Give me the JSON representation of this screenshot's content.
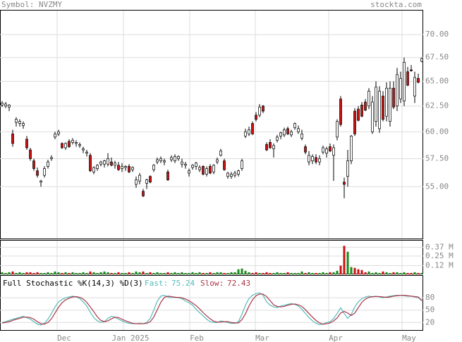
{
  "header": {
    "symbol": "Symbol: NVZMY",
    "site": "stockta.com"
  },
  "chart_data": [
    {
      "type": "candlestick",
      "log": true,
      "ylim": [
        50.6,
        72.8
      ],
      "yticks": [
        {
          "value": 70,
          "label": "70.00"
        },
        {
          "value": 67.5,
          "label": "67.50"
        },
        {
          "value": 65,
          "label": "65.00"
        },
        {
          "value": 62.5,
          "label": "62.50"
        },
        {
          "value": 60,
          "label": "60.00"
        },
        {
          "value": 57.5,
          "label": "57.50"
        },
        {
          "value": 55,
          "label": "55.00"
        }
      ],
      "grid": true,
      "up_color": "#ffffff",
      "down_color": "#cc1111",
      "open": [
        62.6,
        62.5,
        62.4,
        59.8,
        60.9,
        60.8,
        60.6,
        59.3,
        58.3,
        57.3,
        56.4,
        55.4,
        56.0,
        56.8,
        57.5,
        59.5,
        59.8,
        58.9,
        58.5,
        59.1,
        59.0,
        58.9,
        58.7,
        58.3,
        58.0,
        57.8,
        56.3,
        56.6,
        57.0,
        57.0,
        57.0,
        57.2,
        56.9,
        56.9,
        56.6,
        56.7,
        56.8,
        56.5,
        55.2,
        55.5,
        54.6,
        55.3,
        55.9,
        56.5,
        57.2,
        57.3,
        57.2,
        56.3,
        57.4,
        57.3,
        57.5,
        57.0,
        56.9,
        56.2,
        56.7,
        56.8,
        56.5,
        56.8,
        56.1,
        56.8,
        56.3,
        57.2,
        57.8,
        57.3,
        55.9,
        55.9,
        56.0,
        56.1,
        56.6,
        59.6,
        59.8,
        60.8,
        61.6,
        61.6,
        62.5,
        58.8,
        59.0,
        58.4,
        59.2,
        59.6,
        59.7,
        60.3,
        59.7,
        60.4,
        60.0,
        59.4,
        58.6,
        57.2,
        57.3,
        57.6,
        57.2,
        58.1,
        58.0,
        58.6,
        57.8,
        59.5,
        63.2,
        55.4,
        55.9,
        57.3,
        62.0,
        62.2,
        62.6,
        62.9,
        62.5,
        60.0,
        61.0,
        60.3,
        63.5,
        61.5,
        61.0,
        64.3,
        62.5,
        63.2,
        63.0,
        66.0,
        66.2,
        63.5,
        65.3,
        67.1
      ],
      "high": [
        63.0,
        62.9,
        62.7,
        60.2,
        61.4,
        61.2,
        61.0,
        59.6,
        58.5,
        57.5,
        56.7,
        55.6,
        56.8,
        57.4,
        57.8,
        60.0,
        60.2,
        59.0,
        59.0,
        59.3,
        59.4,
        59.2,
        59.0,
        58.6,
        58.3,
        58.0,
        56.8,
        57.0,
        57.3,
        57.4,
        58.0,
        57.6,
        57.3,
        57.2,
        57.1,
        56.9,
        57.0,
        56.8,
        55.9,
        56.2,
        54.8,
        55.7,
        56.0,
        57.0,
        57.6,
        57.7,
        57.5,
        56.5,
        57.8,
        57.9,
        57.8,
        57.5,
        57.2,
        56.6,
        57.0,
        57.2,
        56.9,
        56.9,
        56.8,
        57.0,
        57.0,
        57.6,
        58.4,
        57.5,
        56.3,
        56.3,
        56.4,
        56.5,
        57.5,
        60.3,
        60.5,
        61.0,
        61.9,
        62.7,
        62.6,
        59.0,
        59.3,
        58.9,
        59.7,
        60.0,
        60.4,
        60.5,
        60.2,
        60.9,
        60.6,
        60.2,
        58.8,
        58.2,
        57.9,
        57.9,
        57.8,
        58.7,
        58.6,
        58.9,
        58.8,
        61.2,
        63.5,
        55.8,
        58.3,
        59.7,
        62.3,
        62.5,
        62.9,
        63.2,
        64.3,
        63.5,
        65.0,
        64.5,
        64.0,
        64.9,
        65.0,
        65.0,
        66.4,
        66.0,
        67.5,
        66.5,
        66.7,
        66.0,
        65.8,
        67.5
      ],
      "low": [
        62.4,
        62.3,
        62.0,
        58.6,
        60.5,
        60.5,
        60.3,
        58.3,
        57.3,
        56.4,
        55.8,
        55.0,
        55.8,
        56.6,
        57.3,
        59.3,
        59.6,
        58.4,
        58.3,
        58.5,
        58.8,
        58.6,
        58.5,
        58.0,
        57.7,
        56.3,
        56.1,
        56.4,
        56.8,
        56.7,
        56.8,
        56.8,
        56.6,
        56.4,
        56.3,
        56.4,
        56.2,
        56.3,
        54.9,
        55.2,
        54.1,
        54.8,
        55.3,
        56.3,
        57.0,
        57.1,
        56.9,
        55.5,
        57.2,
        57.1,
        57.3,
        56.7,
        56.6,
        55.9,
        56.5,
        56.5,
        56.3,
        56.0,
        55.9,
        56.1,
        56.1,
        57.0,
        57.7,
        56.4,
        55.7,
        55.7,
        55.8,
        55.9,
        56.4,
        59.4,
        59.6,
        59.7,
        61.0,
        61.4,
        61.8,
        58.2,
        58.4,
        57.6,
        59.0,
        59.3,
        59.5,
        59.7,
        59.5,
        60.2,
        59.8,
        59.2,
        57.9,
        56.9,
        57.0,
        57.0,
        56.9,
        57.9,
        57.6,
        58.1,
        55.5,
        59.2,
        60.5,
        54.0,
        55.0,
        57.0,
        59.6,
        61.0,
        61.4,
        62.0,
        62.2,
        59.8,
        60.5,
        59.9,
        61.0,
        61.0,
        60.5,
        62.2,
        62.0,
        62.8,
        62.5,
        64.5,
        66.0,
        62.8,
        64.8,
        67.0
      ],
      "close": [
        62.8,
        62.7,
        62.6,
        58.9,
        61.2,
        61.0,
        60.8,
        58.5,
        57.5,
        56.6,
        56.0,
        55.5,
        56.6,
        57.2,
        57.6,
        59.8,
        60.0,
        58.5,
        58.9,
        58.6,
        59.2,
        59.0,
        58.8,
        58.4,
        58.1,
        56.4,
        56.7,
        56.9,
        57.2,
        57.3,
        57.5,
        56.9,
        57.1,
        56.5,
        56.8,
        56.8,
        56.3,
        56.7,
        55.6,
        56.0,
        54.2,
        55.6,
        55.4,
        56.9,
        57.4,
        57.5,
        57.3,
        55.6,
        57.6,
        57.7,
        57.7,
        57.2,
        57.0,
        56.4,
        56.9,
        57.1,
        56.7,
        56.1,
        56.6,
        56.2,
        56.9,
        57.4,
        58.2,
        56.5,
        56.2,
        56.1,
        56.2,
        56.4,
        57.3,
        60.0,
        60.2,
        59.8,
        61.2,
        62.4,
        62.0,
        58.3,
        58.5,
        58.7,
        59.5,
        59.9,
        60.2,
        59.8,
        60.0,
        60.8,
        60.3,
        59.8,
        58.1,
        57.8,
        57.7,
        57.2,
        57.5,
        58.5,
        58.4,
        58.2,
        58.5,
        61.0,
        60.7,
        55.2,
        57.3,
        59.6,
        59.8,
        61.1,
        61.5,
        62.1,
        64.0,
        62.9,
        64.4,
        64.0,
        61.2,
        64.3,
        64.3,
        62.4,
        65.7,
        65.3,
        67.0,
        64.6,
        66.1,
        65.4,
        64.9,
        67.4
      ]
    },
    {
      "type": "bar",
      "ylim": [
        0,
        0.47
      ],
      "yticks": [
        {
          "value": 0.37,
          "label": "0.37 M"
        },
        {
          "value": 0.25,
          "label": "0.25 M"
        },
        {
          "value": 0.12,
          "label": "0.12 M"
        }
      ],
      "grid": true,
      "up_color": "#1a8a1a",
      "down_color": "#cc1111",
      "values": [
        0.03,
        0.02,
        0.03,
        0.04,
        0.02,
        0.03,
        0.02,
        0.03,
        0.03,
        0.02,
        0.03,
        0.02,
        0.02,
        0.03,
        0.02,
        0.04,
        0.03,
        0.02,
        0.03,
        0.02,
        0.03,
        0.02,
        0.02,
        0.03,
        0.02,
        0.04,
        0.03,
        0.02,
        0.03,
        0.04,
        0.03,
        0.02,
        0.02,
        0.03,
        0.02,
        0.02,
        0.03,
        0.02,
        0.04,
        0.03,
        0.04,
        0.02,
        0.03,
        0.02,
        0.03,
        0.02,
        0.02,
        0.03,
        0.02,
        0.03,
        0.02,
        0.03,
        0.02,
        0.02,
        0.03,
        0.02,
        0.03,
        0.02,
        0.02,
        0.03,
        0.02,
        0.03,
        0.03,
        0.02,
        0.02,
        0.03,
        0.03,
        0.07,
        0.08,
        0.05,
        0.03,
        0.02,
        0.03,
        0.02,
        0.02,
        0.03,
        0.02,
        0.02,
        0.03,
        0.02,
        0.02,
        0.03,
        0.02,
        0.02,
        0.02,
        0.04,
        0.02,
        0.03,
        0.02,
        0.02,
        0.02,
        0.03,
        0.02,
        0.03,
        0.03,
        0.05,
        0.12,
        0.39,
        0.31,
        0.1,
        0.09,
        0.07,
        0.06,
        0.03,
        0.04,
        0.02,
        0.03,
        0.02,
        0.04,
        0.03,
        0.02,
        0.03,
        0.03,
        0.02,
        0.03,
        0.02,
        0.02,
        0.03,
        0.02,
        0.02
      ]
    },
    {
      "type": "line",
      "title": "Full Stochastic %K(14,3) %D(3)",
      "ylim": [
        0,
        135
      ],
      "yticks": [
        80,
        50,
        20
      ],
      "grid": true,
      "xticks": [
        {
          "value": 15.6,
          "label": "Dec"
        },
        {
          "value": 34.4,
          "label": "Jan 2025"
        },
        {
          "value": 53.2,
          "label": "Feb"
        },
        {
          "value": 71.8,
          "label": "Mar"
        },
        {
          "value": 92.6,
          "label": "Apr"
        },
        {
          "value": 113.4,
          "label": "May"
        }
      ],
      "series": [
        {
          "name": "Fast:",
          "color": "#55bbbb",
          "values": [
            20,
            22,
            25,
            28,
            30,
            33,
            35,
            32,
            28,
            22,
            16,
            14,
            18,
            28,
            42,
            58,
            70,
            76,
            80,
            82,
            84,
            82,
            78,
            70,
            60,
            45,
            32,
            24,
            20,
            22,
            30,
            35,
            33,
            28,
            24,
            20,
            18,
            17,
            17,
            18,
            17,
            20,
            30,
            50,
            72,
            84,
            86,
            82,
            80,
            82,
            80,
            78,
            72,
            68,
            62,
            52,
            44,
            36,
            28,
            22,
            20,
            20,
            24,
            22,
            20,
            18,
            18,
            22,
            40,
            62,
            78,
            86,
            90,
            92,
            86,
            70,
            62,
            58,
            56,
            60,
            62,
            64,
            66,
            64,
            60,
            52,
            42,
            32,
            24,
            18,
            15,
            16,
            20,
            22,
            30,
            42,
            56,
            42,
            30,
            40,
            58,
            70,
            78,
            82,
            84,
            82,
            84,
            82,
            80,
            82,
            84,
            85,
            86,
            86,
            85,
            84,
            84,
            82,
            80,
            75.24
          ]
        },
        {
          "name": "Slow:",
          "color": "#aa3344",
          "values": [
            19,
            20,
            22,
            25,
            28,
            30,
            33,
            33,
            32,
            28,
            22,
            17,
            16,
            20,
            29,
            43,
            57,
            68,
            75,
            79,
            82,
            83,
            81,
            77,
            69,
            58,
            46,
            34,
            25,
            22,
            24,
            29,
            33,
            32,
            28,
            24,
            21,
            18,
            17,
            17,
            17,
            18,
            22,
            33,
            51,
            69,
            81,
            84,
            83,
            81,
            81,
            80,
            77,
            73,
            67,
            61,
            53,
            44,
            36,
            29,
            23,
            21,
            21,
            22,
            22,
            20,
            19,
            19,
            27,
            41,
            60,
            75,
            85,
            89,
            89,
            83,
            73,
            63,
            59,
            58,
            59,
            62,
            64,
            65,
            63,
            59,
            51,
            42,
            33,
            25,
            19,
            16,
            17,
            19,
            24,
            31,
            43,
            47,
            43,
            37,
            43,
            56,
            69,
            77,
            81,
            83,
            83,
            83,
            82,
            81,
            82,
            84,
            85,
            86,
            86,
            85,
            84,
            83,
            82,
            72.43
          ]
        }
      ]
    }
  ]
}
